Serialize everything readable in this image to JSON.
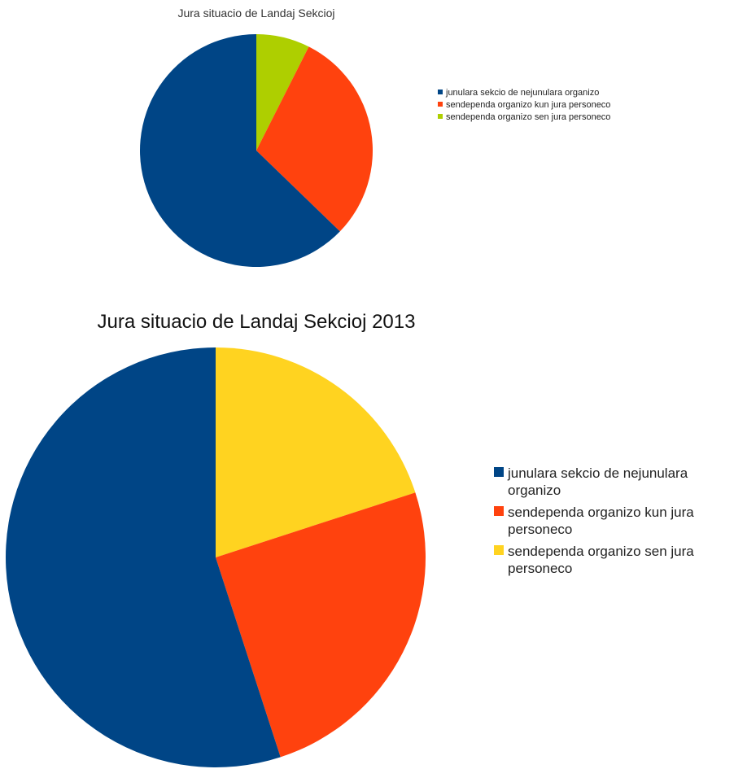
{
  "chart_data": [
    {
      "type": "pie",
      "title": "Jura situacio de Landaj Sekcioj",
      "legend_position": "right",
      "series": [
        {
          "categories": [
            "junulara sekcio de nejunulara organizo",
            "sendependa organizo kun jura personeco",
            "sendependa organizo sen jura personeco"
          ],
          "values": [
            59,
            28,
            7
          ]
        }
      ],
      "colors": [
        "#004586",
        "#ff420e",
        "#aecf00"
      ]
    },
    {
      "type": "pie",
      "title": "Jura situacio de Landaj Sekcioj 2013",
      "legend_position": "right",
      "series": [
        {
          "categories": [
            "junulara sekcio de nejunulara organizo",
            "sendependa organizo kun jura personeco",
            "sendependa organizo sen jura personeco"
          ],
          "values": [
            55,
            25,
            20
          ]
        }
      ],
      "colors": [
        "#004586",
        "#ff420e",
        "#ffd320"
      ]
    }
  ]
}
